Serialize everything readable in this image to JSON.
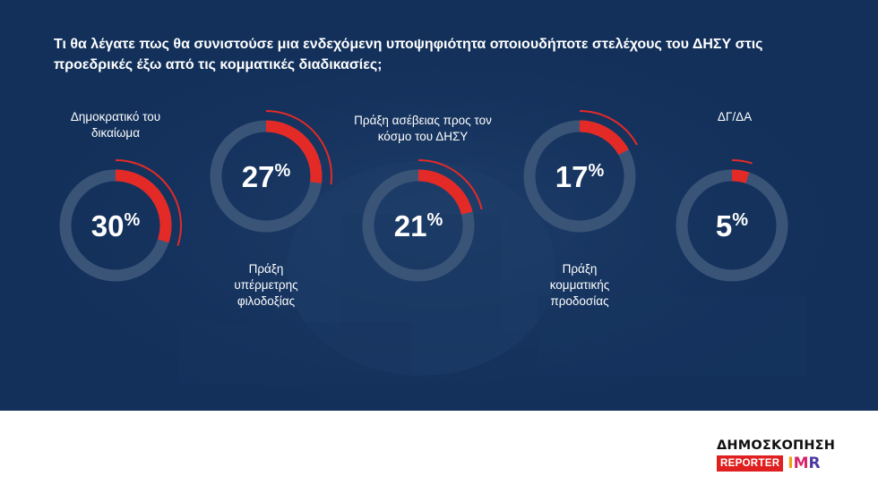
{
  "title": "Τι θα λέγατε πως θα συνιστούσε μια ενδεχόμενη υποψηφιότητα οποιουδήποτε στελέχους του ΔΗΣΥ στις προεδρικές έξω από τις κομματικές διαδικασίες;",
  "colors": {
    "background": "#12305a",
    "ring": "#3a5478",
    "accent": "#e42a27",
    "text": "#ffffff"
  },
  "chart_data": {
    "type": "donut",
    "unit": "%",
    "items": [
      {
        "label": "Δημοκρατικό του\nδικαίωμα",
        "value": 30,
        "display": "30%"
      },
      {
        "label": "Πράξη\nυπέρμετρης\nφιλοδοξίας",
        "value": 27,
        "display": "27%"
      },
      {
        "label": "Πράξη ασέβειας προς τον\nκόσμο του ΔΗΣΥ",
        "value": 21,
        "display": "21%"
      },
      {
        "label": "Πράξη\nκομματικής\nπροδοσίας",
        "value": 17,
        "display": "17%"
      },
      {
        "label": "ΔΓ/ΔΑ",
        "value": 5,
        "display": "5%"
      }
    ]
  },
  "logo": {
    "top": "ΔΗΜΟΣΚΟΠΗΣΗ",
    "reporter": "REPORTER",
    "imr_i": "I",
    "imr_m": "M",
    "imr_r": "R"
  }
}
